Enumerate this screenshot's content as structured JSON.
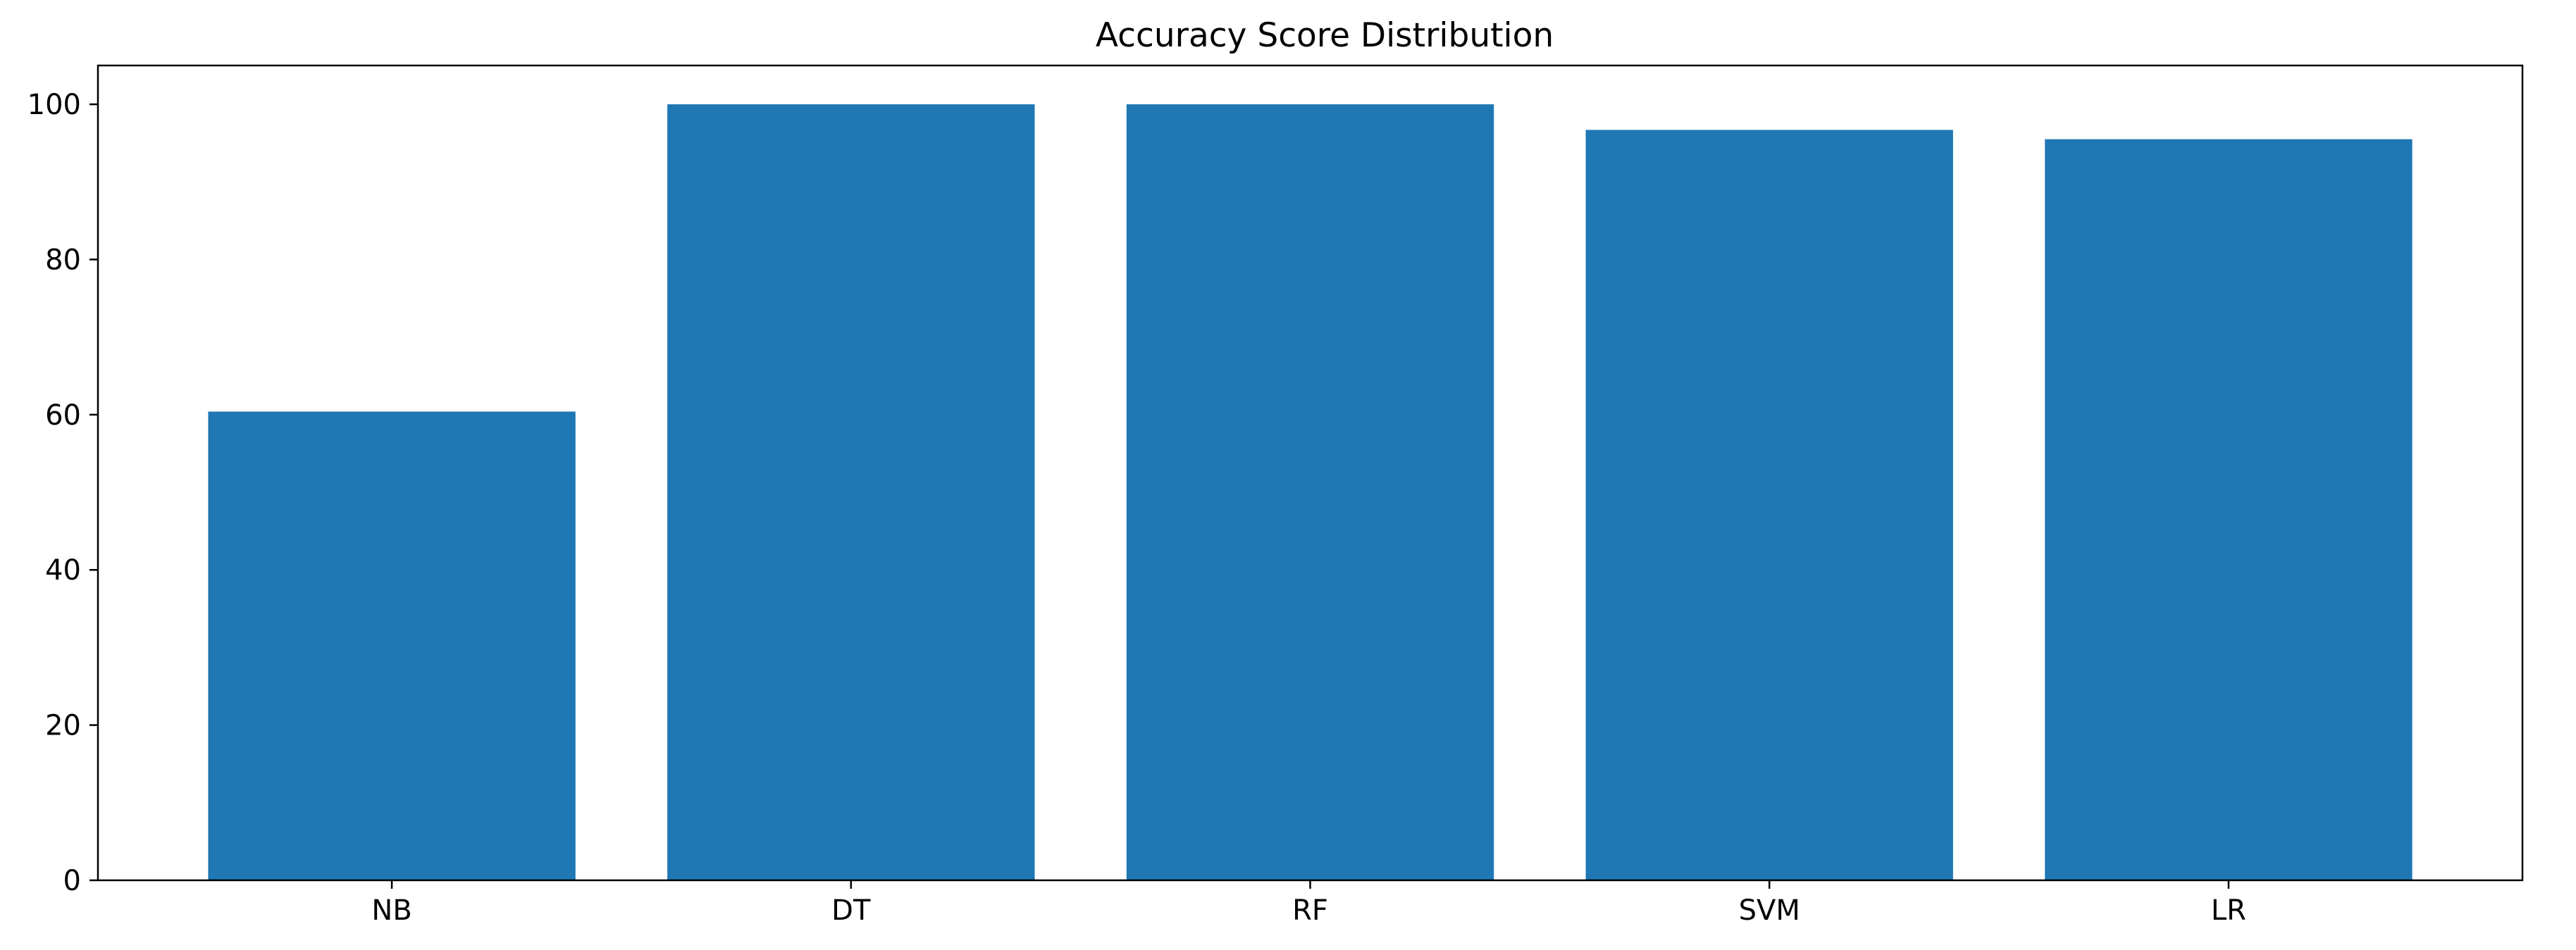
{
  "chart_data": {
    "type": "bar",
    "title": "Accuracy Score Distribution",
    "xlabel": "",
    "ylabel": "",
    "categories": [
      "NB",
      "DT",
      "RF",
      "SVM",
      "LR"
    ],
    "values": [
      60.4,
      100.0,
      100.0,
      96.7,
      95.5
    ],
    "ylim": [
      0,
      105
    ],
    "yticks": [
      0,
      20,
      40,
      60,
      80,
      100
    ],
    "grid": false,
    "bar_color": "#1f77b4"
  }
}
